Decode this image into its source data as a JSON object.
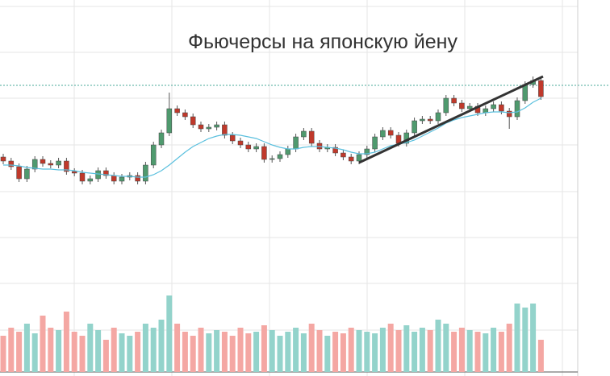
{
  "chart_data": {
    "type": "candlestick",
    "title": "Фьючерсы на японскую йену",
    "open": [
      272,
      267,
      260,
      245,
      257,
      269,
      264,
      262,
      267,
      254,
      252,
      242,
      245,
      255,
      249,
      242,
      247,
      249,
      242,
      262,
      287,
      302,
      332,
      327,
      322,
      312,
      307,
      309,
      312,
      299,
      292,
      287,
      282,
      285,
      269,
      270,
      275,
      282,
      297,
      304,
      289,
      282,
      284,
      277,
      272,
      267,
      275,
      282,
      297,
      305,
      299,
      289,
      302,
      317,
      319,
      317,
      327,
      345,
      339,
      332,
      335,
      327,
      332,
      337,
      329,
      322,
      342,
      362,
      367
    ],
    "high": [
      276,
      271,
      264,
      261,
      273,
      273,
      268,
      271,
      271,
      258,
      256,
      249,
      259,
      259,
      253,
      251,
      253,
      253,
      266,
      291,
      306,
      352,
      336,
      331,
      326,
      316,
      313,
      316,
      316,
      303,
      296,
      291,
      289,
      289,
      274,
      279,
      286,
      301,
      308,
      308,
      293,
      288,
      288,
      281,
      276,
      279,
      286,
      301,
      309,
      309,
      303,
      306,
      321,
      323,
      323,
      331,
      349,
      349,
      343,
      339,
      339,
      336,
      341,
      341,
      333,
      346,
      366,
      372,
      371
    ],
    "low": [
      263,
      256,
      241,
      241,
      253,
      260,
      258,
      258,
      250,
      248,
      238,
      238,
      241,
      245,
      238,
      238,
      243,
      238,
      238,
      258,
      283,
      298,
      323,
      318,
      308,
      303,
      303,
      305,
      295,
      288,
      283,
      278,
      278,
      265,
      265,
      266,
      271,
      278,
      293,
      285,
      278,
      278,
      273,
      268,
      263,
      263,
      271,
      278,
      293,
      295,
      285,
      285,
      298,
      313,
      313,
      313,
      323,
      335,
      328,
      328,
      323,
      323,
      328,
      325,
      307,
      318,
      338,
      358,
      343
    ],
    "close": [
      267,
      260,
      245,
      257,
      269,
      264,
      262,
      267,
      254,
      252,
      242,
      245,
      255,
      249,
      242,
      247,
      249,
      242,
      262,
      287,
      302,
      332,
      327,
      322,
      312,
      307,
      309,
      312,
      299,
      292,
      287,
      282,
      285,
      269,
      270,
      275,
      282,
      297,
      304,
      289,
      282,
      284,
      277,
      272,
      267,
      275,
      282,
      297,
      305,
      299,
      289,
      302,
      317,
      319,
      317,
      327,
      345,
      339,
      332,
      335,
      327,
      332,
      337,
      329,
      322,
      342,
      362,
      367,
      347
    ],
    "ma": [
      262,
      262,
      261,
      259,
      258,
      257,
      257,
      256,
      256,
      255,
      253,
      252,
      251,
      250,
      249,
      248,
      248,
      247,
      247,
      250,
      255,
      262,
      270,
      278,
      285,
      290,
      295,
      298,
      300,
      300,
      299,
      297,
      295,
      291,
      287,
      284,
      282,
      282,
      284,
      285,
      285,
      284,
      283,
      281,
      278,
      276,
      276,
      278,
      282,
      286,
      288,
      290,
      293,
      298,
      303,
      308,
      314,
      318,
      321,
      323,
      325,
      327,
      328,
      328,
      327,
      328,
      333,
      340,
      345
    ],
    "volume": [
      45,
      55,
      50,
      60,
      48,
      70,
      55,
      52,
      75,
      50,
      45,
      60,
      52,
      40,
      55,
      48,
      45,
      50,
      60,
      55,
      65,
      95,
      60,
      50,
      45,
      55,
      48,
      52,
      50,
      45,
      55,
      48,
      50,
      58,
      52,
      45,
      50,
      55,
      48,
      60,
      52,
      45,
      50,
      48,
      55,
      52,
      50,
      48,
      55,
      60,
      52,
      58,
      50,
      55,
      52,
      65,
      60,
      50,
      55,
      52,
      50,
      48,
      55,
      50,
      60,
      85,
      80,
      85,
      40
    ],
    "up_color": "#4f9a6e",
    "down_color": "#c0392b",
    "volume_up_color": "#93d3cb",
    "volume_down_color": "#f4a7a3",
    "ma_color": "#5bc0de",
    "ylim": [
      0,
      467
    ],
    "volume_ylim": [
      0,
      100
    ]
  }
}
